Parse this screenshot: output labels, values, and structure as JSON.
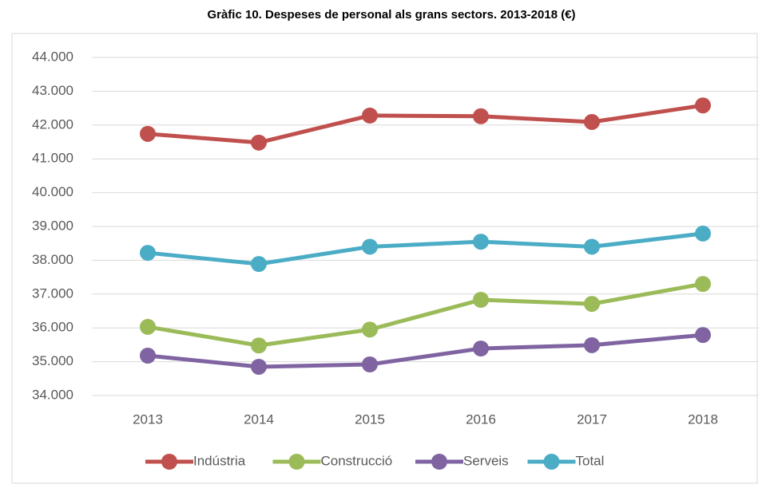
{
  "chart_data": {
    "type": "line",
    "title": "Gràfic 10. Despeses de personal als grans sectors. 2013-2018 (€)",
    "categories": [
      "2013",
      "2014",
      "2015",
      "2016",
      "2017",
      "2018"
    ],
    "series": [
      {
        "name": "Indústria",
        "color": "#c0504d",
        "values": [
          41740,
          41480,
          42280,
          42260,
          42090,
          42580
        ]
      },
      {
        "name": "Construcció",
        "color": "#9bbb59",
        "values": [
          36030,
          35480,
          35950,
          36830,
          36710,
          37300
        ]
      },
      {
        "name": "Serveis",
        "color": "#8064a2",
        "values": [
          35180,
          34850,
          34920,
          35390,
          35490,
          35790
        ]
      },
      {
        "name": "Total",
        "color": "#4bacc6",
        "values": [
          38220,
          37890,
          38400,
          38550,
          38400,
          38790
        ]
      }
    ],
    "ylim": [
      34000,
      44000
    ],
    "yticks": [
      {
        "value": 34000,
        "label": "34.000"
      },
      {
        "value": 35000,
        "label": "35.000"
      },
      {
        "value": 36000,
        "label": "36.000"
      },
      {
        "value": 37000,
        "label": "37.000"
      },
      {
        "value": 38000,
        "label": "38.000"
      },
      {
        "value": 39000,
        "label": "39.000"
      },
      {
        "value": 40000,
        "label": "40.000"
      },
      {
        "value": 41000,
        "label": "41.000"
      },
      {
        "value": 42000,
        "label": "42.000"
      },
      {
        "value": 43000,
        "label": "43.000"
      },
      {
        "value": 44000,
        "label": "44.000"
      }
    ],
    "grid": true,
    "legend": "bottom"
  }
}
